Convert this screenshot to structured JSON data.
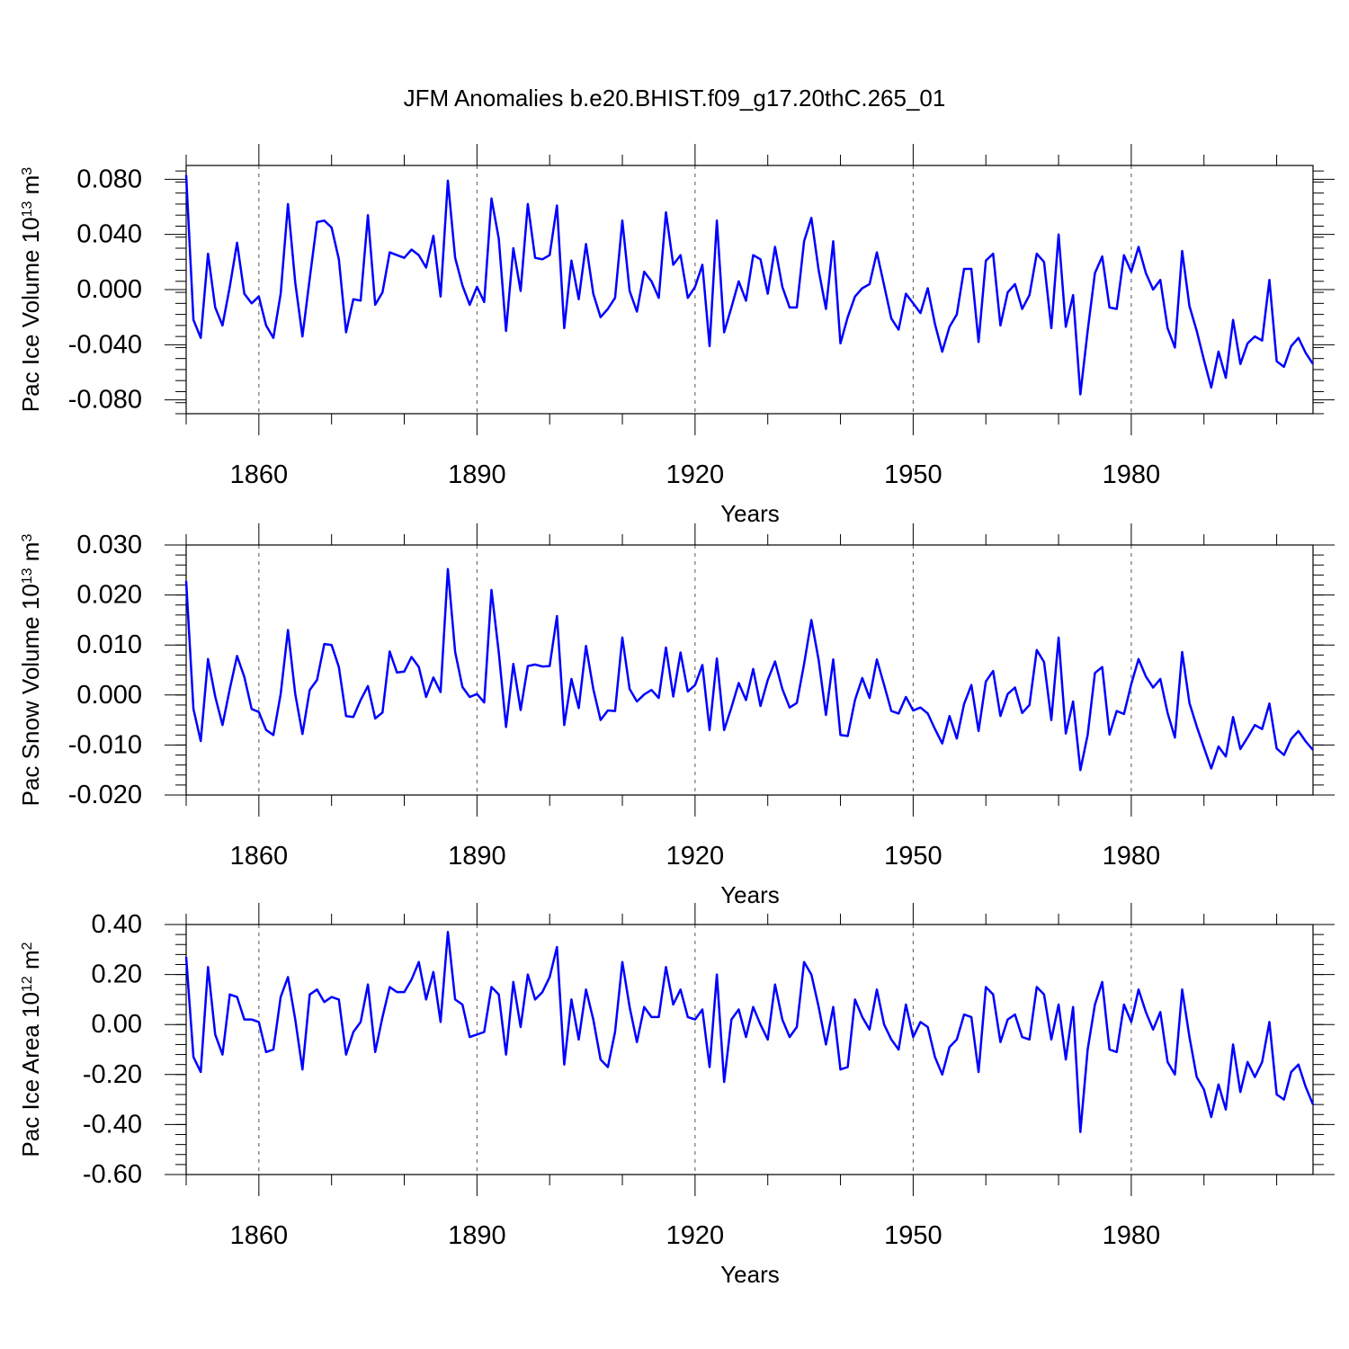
{
  "title": "JFM Anomalies b.e20.BHIST.f09_g17.20thC.265_01",
  "chart_data": [
    {
      "type": "line",
      "ylabel": "Pac Ice Volume 10",
      "ylabel_exp": "13",
      "ylabel_unit": " m",
      "ylabel_unit_exp": "3",
      "xlabel": "Years",
      "xlim": [
        1850,
        2005
      ],
      "ylim": [
        -0.09,
        0.09
      ],
      "yticks": [
        -0.08,
        -0.04,
        0.0,
        0.04,
        0.08
      ],
      "ytick_labels": [
        "-0.080",
        "-0.040",
        "0.000",
        "0.040",
        "0.080"
      ],
      "xticks": [
        1860,
        1890,
        1920,
        1950,
        1980
      ],
      "xtick_labels": [
        "1860",
        "1890",
        "1920",
        "1950",
        "1980"
      ],
      "series": [
        {
          "name": "Pac Ice Volume",
          "color": "#0000ff",
          "x_start": 1850,
          "values": [
            0.083,
            -0.022,
            -0.035,
            0.026,
            -0.013,
            -0.026,
            0.002,
            0.034,
            -0.003,
            -0.01,
            -0.005,
            -0.026,
            -0.035,
            -0.003,
            0.062,
            0.005,
            -0.034,
            0.008,
            0.049,
            0.05,
            0.045,
            0.022,
            -0.031,
            -0.007,
            -0.008,
            0.054,
            -0.011,
            -0.002,
            0.027,
            0.025,
            0.023,
            0.029,
            0.025,
            0.016,
            0.039,
            -0.005,
            0.079,
            0.023,
            0.003,
            -0.011,
            0.002,
            -0.009,
            0.066,
            0.037,
            -0.03,
            0.03,
            -0.001,
            0.062,
            0.023,
            0.022,
            0.025,
            0.061,
            -0.028,
            0.021,
            -0.007,
            0.033,
            -0.003,
            -0.02,
            -0.014,
            -0.006,
            0.05,
            -0.001,
            -0.016,
            0.013,
            0.006,
            -0.006,
            0.056,
            0.018,
            0.025,
            -0.006,
            0.002,
            0.018,
            -0.041,
            0.05,
            -0.031,
            -0.013,
            0.006,
            -0.008,
            0.025,
            0.022,
            -0.003,
            0.031,
            0.002,
            -0.013,
            -0.013,
            0.035,
            0.052,
            0.014,
            -0.014,
            0.035,
            -0.039,
            -0.02,
            -0.005,
            0.001,
            0.004,
            0.027,
            0.003,
            -0.021,
            -0.029,
            -0.003,
            -0.01,
            -0.017,
            0.001,
            -0.025,
            -0.045,
            -0.027,
            -0.018,
            0.015,
            0.015,
            -0.038,
            0.021,
            0.026,
            -0.026,
            -0.002,
            0.004,
            -0.014,
            -0.004,
            0.026,
            0.02,
            -0.028,
            0.04,
            -0.027,
            -0.004,
            -0.076,
            -0.03,
            0.012,
            0.024,
            -0.013,
            -0.014,
            0.025,
            0.013,
            0.031,
            0.012,
            0.0,
            0.007,
            -0.028,
            -0.042,
            0.028,
            -0.012,
            -0.03,
            -0.051,
            -0.071,
            -0.045,
            -0.064,
            -0.022,
            -0.054,
            -0.039,
            -0.034,
            -0.037,
            0.007,
            -0.052,
            -0.056,
            -0.041,
            -0.035,
            -0.046,
            -0.054
          ]
        }
      ]
    },
    {
      "type": "line",
      "ylabel": "Pac Snow Volume 10",
      "ylabel_exp": "13",
      "ylabel_unit": " m",
      "ylabel_unit_exp": "3",
      "xlabel": "Years",
      "xlim": [
        1850,
        2005
      ],
      "ylim": [
        -0.02,
        0.03
      ],
      "yticks": [
        -0.02,
        -0.01,
        0.0,
        0.01,
        0.02,
        0.03
      ],
      "ytick_labels": [
        "-0.020",
        "-0.010",
        "0.000",
        "0.010",
        "0.020",
        "0.030"
      ],
      "xticks": [
        1860,
        1890,
        1920,
        1950,
        1980
      ],
      "xtick_labels": [
        "1860",
        "1890",
        "1920",
        "1950",
        "1980"
      ],
      "series": [
        {
          "name": "Pac Snow Volume",
          "color": "#0000ff",
          "x_start": 1850,
          "values": [
            0.0228,
            -0.0028,
            -0.0092,
            0.0072,
            -0.0003,
            -0.006,
            0.0012,
            0.0078,
            0.0036,
            -0.0028,
            -0.0034,
            -0.007,
            -0.008,
            0.0002,
            0.013,
            0.0002,
            -0.0078,
            0.001,
            0.003,
            0.0102,
            0.01,
            0.0056,
            -0.0042,
            -0.0044,
            -0.001,
            0.0018,
            -0.0047,
            -0.0035,
            0.0087,
            0.0045,
            0.0047,
            0.0076,
            0.0056,
            -0.0004,
            0.0035,
            0.0006,
            0.0252,
            0.0086,
            0.0016,
            -0.0004,
            0.0002,
            -0.0015,
            0.021,
            0.0085,
            -0.0064,
            0.0062,
            -0.003,
            0.0058,
            0.0061,
            0.0057,
            0.0058,
            0.0158,
            -0.006,
            0.0032,
            -0.0026,
            0.0098,
            0.0012,
            -0.005,
            -0.0031,
            -0.0032,
            0.0115,
            0.0012,
            -0.0013,
            0.0001,
            0.001,
            -0.0006,
            0.0095,
            -0.0003,
            0.0085,
            0.0007,
            0.002,
            0.006,
            -0.007,
            0.0073,
            -0.007,
            -0.0025,
            0.0024,
            -0.001,
            0.0052,
            -0.0022,
            0.003,
            0.0067,
            0.0012,
            -0.0025,
            -0.0016,
            0.0062,
            0.015,
            0.007,
            -0.004,
            0.0071,
            -0.008,
            -0.0082,
            -0.001,
            0.0034,
            -0.0006,
            0.0071,
            0.002,
            -0.0032,
            -0.0037,
            -0.0004,
            -0.0031,
            -0.0025,
            -0.0037,
            -0.0068,
            -0.0097,
            -0.0042,
            -0.0087,
            -0.0018,
            0.002,
            -0.0072,
            0.0027,
            0.0048,
            -0.0042,
            0.0002,
            0.0015,
            -0.0036,
            -0.002,
            0.009,
            0.0066,
            -0.005,
            0.0115,
            -0.0077,
            -0.0013,
            -0.015,
            -0.008,
            0.0044,
            0.0056,
            -0.0079,
            -0.0032,
            -0.0038,
            0.0022,
            0.0072,
            0.0037,
            0.0015,
            0.0032,
            -0.0036,
            -0.0085,
            0.0086,
            -0.0016,
            -0.0063,
            -0.0105,
            -0.0147,
            -0.0103,
            -0.0123,
            -0.0044,
            -0.0108,
            -0.0085,
            -0.006,
            -0.0068,
            -0.0017,
            -0.0107,
            -0.012,
            -0.0088,
            -0.0072,
            -0.0093,
            -0.011
          ]
        }
      ]
    },
    {
      "type": "line",
      "ylabel": "Pac Ice Area 10",
      "ylabel_exp": "12",
      "ylabel_unit": " m",
      "ylabel_unit_exp": "2",
      "xlabel": "Years",
      "xlim": [
        1850,
        2005
      ],
      "ylim": [
        -0.6,
        0.4
      ],
      "yticks": [
        -0.6,
        -0.4,
        -0.2,
        0.0,
        0.2,
        0.4
      ],
      "ytick_labels": [
        "-0.60",
        "-0.40",
        "-0.20",
        "0.00",
        "0.20",
        "0.40"
      ],
      "xticks": [
        1860,
        1890,
        1920,
        1950,
        1980
      ],
      "xtick_labels": [
        "1860",
        "1890",
        "1920",
        "1950",
        "1980"
      ],
      "series": [
        {
          "name": "Pac Ice Area",
          "color": "#0000ff",
          "x_start": 1850,
          "values": [
            0.27,
            -0.13,
            -0.19,
            0.23,
            -0.04,
            -0.12,
            0.12,
            0.11,
            0.02,
            0.02,
            0.01,
            -0.11,
            -0.1,
            0.11,
            0.19,
            0.02,
            -0.18,
            0.12,
            0.14,
            0.09,
            0.11,
            0.1,
            -0.12,
            -0.03,
            0.01,
            0.16,
            -0.11,
            0.03,
            0.15,
            0.13,
            0.13,
            0.18,
            0.25,
            0.1,
            0.21,
            0.01,
            0.37,
            0.1,
            0.08,
            -0.05,
            -0.04,
            -0.03,
            0.15,
            0.12,
            -0.12,
            0.17,
            -0.01,
            0.2,
            0.1,
            0.13,
            0.19,
            0.31,
            -0.16,
            0.1,
            -0.06,
            0.14,
            0.02,
            -0.14,
            -0.17,
            -0.03,
            0.25,
            0.07,
            -0.07,
            0.07,
            0.03,
            0.03,
            0.23,
            0.08,
            0.14,
            0.03,
            0.02,
            0.06,
            -0.17,
            0.2,
            -0.23,
            0.02,
            0.06,
            -0.05,
            0.07,
            0.0,
            -0.06,
            0.16,
            0.02,
            -0.05,
            -0.01,
            0.25,
            0.2,
            0.07,
            -0.08,
            0.07,
            -0.18,
            -0.17,
            0.1,
            0.03,
            -0.02,
            0.14,
            0.0,
            -0.06,
            -0.1,
            0.08,
            -0.05,
            0.01,
            -0.01,
            -0.13,
            -0.2,
            -0.09,
            -0.06,
            0.04,
            0.03,
            -0.19,
            0.15,
            0.12,
            -0.07,
            0.02,
            0.04,
            -0.05,
            -0.06,
            0.15,
            0.12,
            -0.06,
            0.08,
            -0.14,
            0.07,
            -0.43,
            -0.1,
            0.08,
            0.17,
            -0.1,
            -0.11,
            0.08,
            0.01,
            0.14,
            0.05,
            -0.02,
            0.05,
            -0.15,
            -0.2,
            0.14,
            -0.05,
            -0.21,
            -0.26,
            -0.37,
            -0.24,
            -0.34,
            -0.08,
            -0.27,
            -0.15,
            -0.21,
            -0.15,
            0.01,
            -0.28,
            -0.3,
            -0.19,
            -0.16,
            -0.25,
            -0.32
          ]
        }
      ]
    }
  ]
}
